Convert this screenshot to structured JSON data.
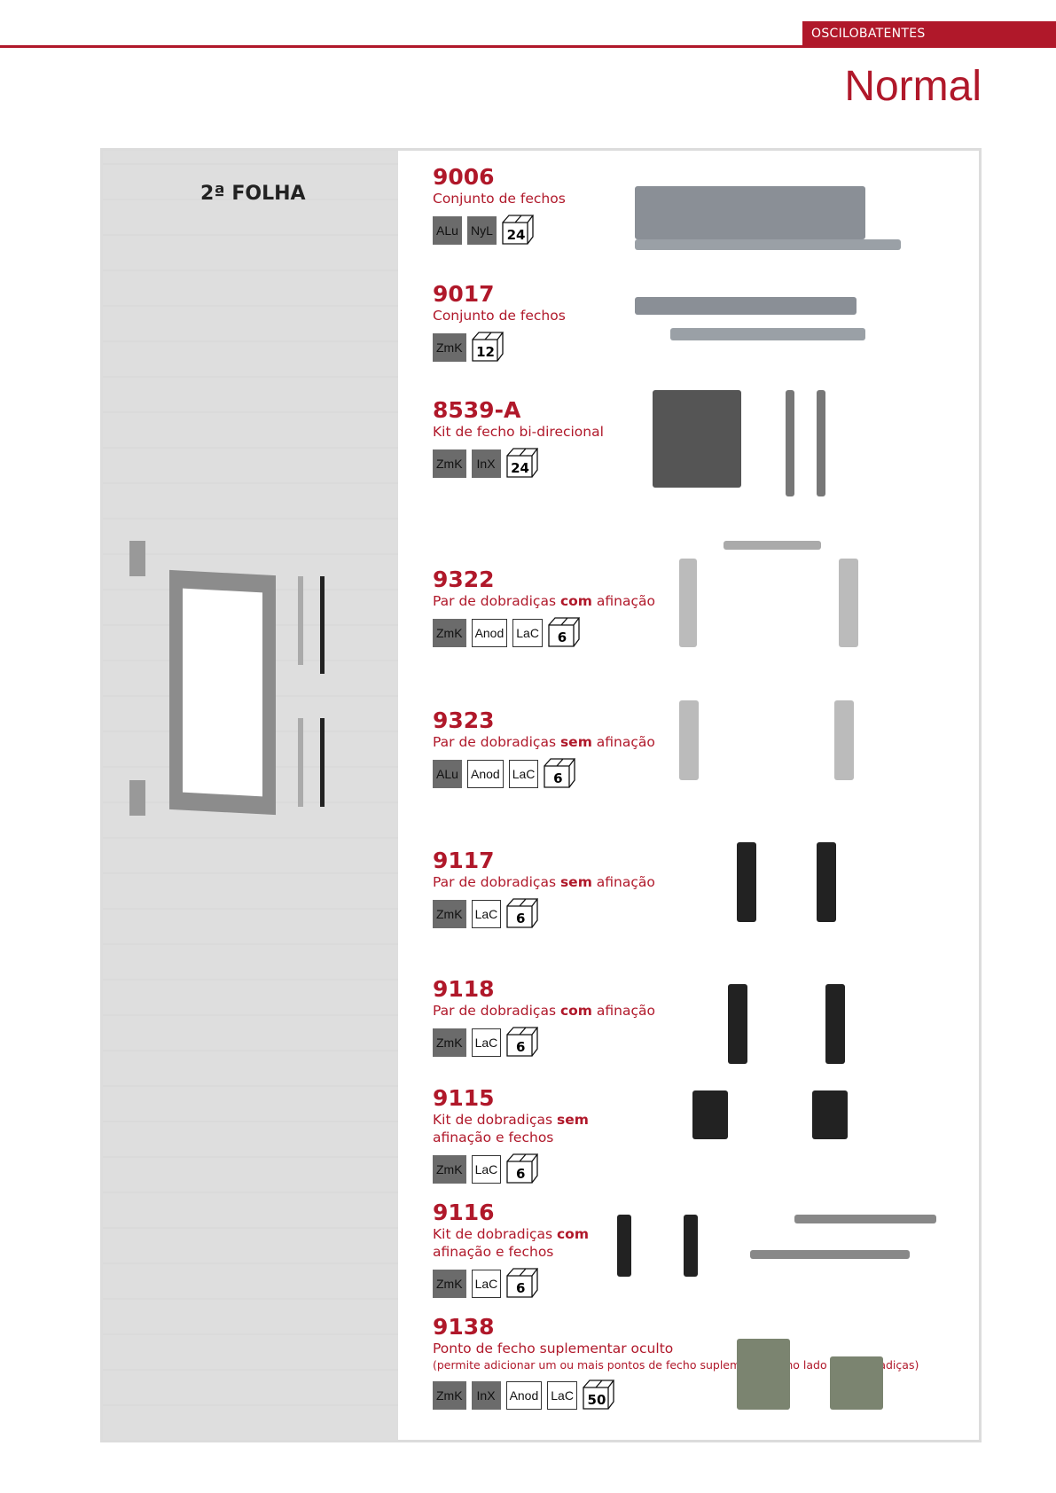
{
  "header": {
    "section_tab": "OSCILOBATENTES",
    "title": "Normal"
  },
  "left_panel": {
    "heading": "2ª FOLHA"
  },
  "items": [
    {
      "code": "9006",
      "desc": "Conjunto de fechos",
      "badges": [
        {
          "t": "ALu",
          "dark": true
        },
        {
          "t": "NyL",
          "dark": true
        }
      ],
      "qty": "24"
    },
    {
      "code": "9017",
      "desc": "Conjunto de fechos",
      "badges": [
        {
          "t": "ZmK",
          "dark": true
        }
      ],
      "qty": "12"
    },
    {
      "code": "8539-A",
      "desc": "Kit de fecho bi-direcional",
      "badges": [
        {
          "t": "ZmK",
          "dark": true
        },
        {
          "t": "InX",
          "dark": true
        }
      ],
      "qty": "24"
    },
    {
      "code": "9322",
      "desc": "Par de dobradiças <b>com</b> afinação",
      "badges": [
        {
          "t": "ZmK",
          "dark": true
        },
        {
          "t": "Anod",
          "dark": false
        },
        {
          "t": "LaC",
          "dark": false
        }
      ],
      "qty": "6"
    },
    {
      "code": "9323",
      "desc": "Par de dobradiças <b>sem</b> afinação",
      "badges": [
        {
          "t": "ALu",
          "dark": true
        },
        {
          "t": "Anod",
          "dark": false
        },
        {
          "t": "LaC",
          "dark": false
        }
      ],
      "qty": "6"
    },
    {
      "code": "9117",
      "desc": "Par de dobradiças <b>sem</b> afinação",
      "badges": [
        {
          "t": "ZmK",
          "dark": true
        },
        {
          "t": "LaC",
          "dark": false
        }
      ],
      "qty": "6"
    },
    {
      "code": "9118",
      "desc": "Par de dobradiças <b>com</b> afinação",
      "badges": [
        {
          "t": "ZmK",
          "dark": true
        },
        {
          "t": "LaC",
          "dark": false
        }
      ],
      "qty": "6"
    },
    {
      "code": "9115",
      "desc": "Kit de dobradiças <b>sem</b><br>afinação e fechos",
      "badges": [
        {
          "t": "ZmK",
          "dark": true
        },
        {
          "t": "LaC",
          "dark": false
        }
      ],
      "qty": "6"
    },
    {
      "code": "9116",
      "desc": "Kit de dobradiças <b>com</b><br>afinação e fechos",
      "badges": [
        {
          "t": "ZmK",
          "dark": true
        },
        {
          "t": "LaC",
          "dark": false
        }
      ],
      "qty": "6"
    },
    {
      "code": "9138",
      "desc": "Ponto de fecho suplementar oculto",
      "note": "(permite adicionar um ou mais pontos de fecho suplementares no lado das dobradiças)",
      "badges": [
        {
          "t": "ZmK",
          "dark": true
        },
        {
          "t": "InX",
          "dark": true
        },
        {
          "t": "Anod",
          "dark": false
        },
        {
          "t": "LaC",
          "dark": false
        }
      ],
      "qty": "50"
    }
  ]
}
